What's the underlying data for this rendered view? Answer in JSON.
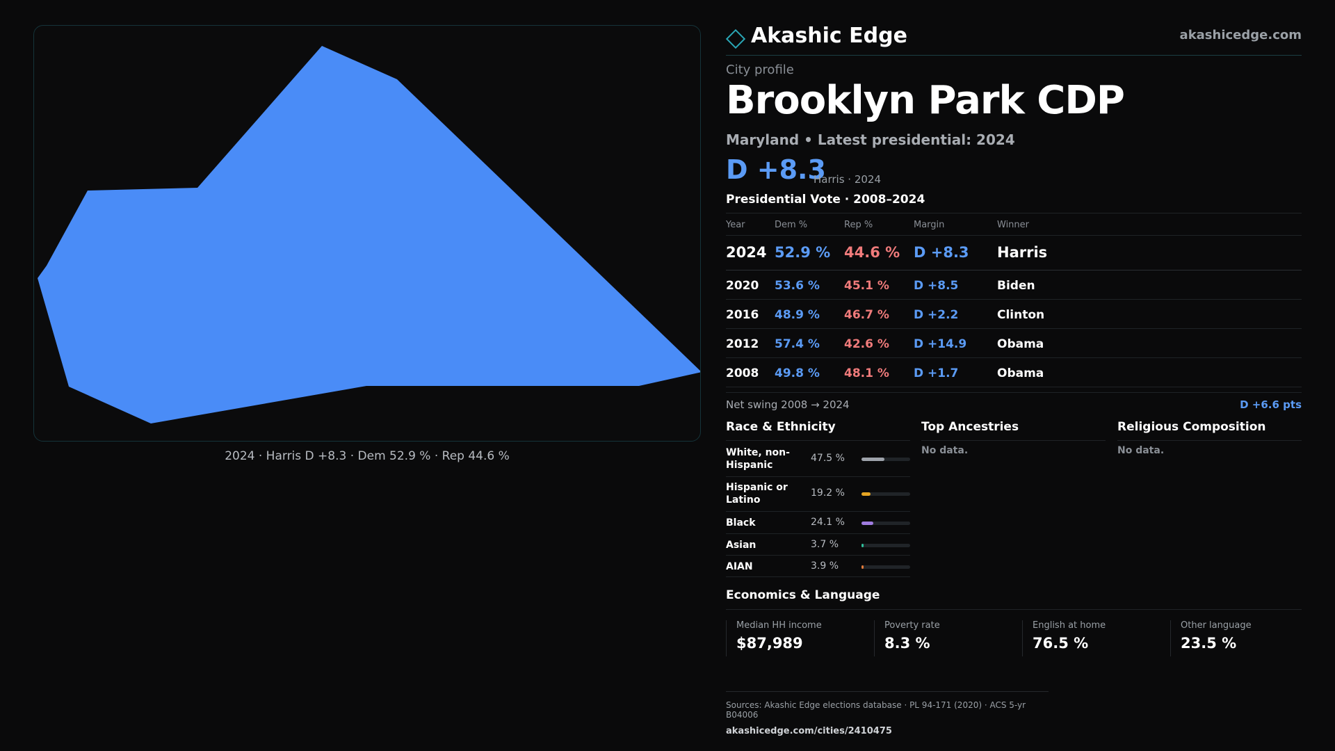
{
  "brand": {
    "name": "Akashic Edge",
    "url": "akashicedge.com",
    "accent_color": "#2aa7b6",
    "logo_icon": "diamond-icon"
  },
  "map": {
    "fill_color": "#4a8cf7",
    "caption": "2024 · Harris D +8.3 · Dem 52.9 % · Rep 44.6 %"
  },
  "profile": {
    "kicker": "City profile",
    "city": "Brooklyn Park CDP",
    "subline": "Maryland • Latest presidential: 2024",
    "margin": "D +8.3",
    "margin_note": "Harris · 2024"
  },
  "vote": {
    "title": "Presidential Vote · 2008–2024",
    "headers": {
      "year": "Year",
      "dem": "Dem %",
      "rep": "Rep %",
      "margin": "Margin",
      "winner": "Winner"
    },
    "rows": [
      {
        "year": "2024",
        "dem": "52.9 %",
        "rep": "44.6 %",
        "margin": "D +8.3",
        "winner": "Harris"
      },
      {
        "year": "2020",
        "dem": "53.6 %",
        "rep": "45.1 %",
        "margin": "D +8.5",
        "winner": "Biden"
      },
      {
        "year": "2016",
        "dem": "48.9 %",
        "rep": "46.7 %",
        "margin": "D +2.2",
        "winner": "Clinton"
      },
      {
        "year": "2012",
        "dem": "57.4 %",
        "rep": "42.6 %",
        "margin": "D +14.9",
        "winner": "Obama"
      },
      {
        "year": "2008",
        "dem": "49.8 %",
        "rep": "48.1 %",
        "margin": "D +1.7",
        "winner": "Obama"
      }
    ],
    "swing_label": "Net swing 2008 → 2024",
    "swing_value": "D +6.6 pts",
    "dem_color": "#5b9bf5",
    "rep_color": "#f07b7b"
  },
  "race": {
    "title": "Race & Ethnicity",
    "items": [
      {
        "label": "White, non-Hispanic",
        "value": "47.5 %",
        "pct": 47.5,
        "color": "#9ea3ab"
      },
      {
        "label": "Hispanic or Latino",
        "value": "19.2 %",
        "pct": 19.2,
        "color": "#e6a523"
      },
      {
        "label": "Black",
        "value": "24.1 %",
        "pct": 24.1,
        "color": "#a07ce0"
      },
      {
        "label": "Asian",
        "value": "3.7 %",
        "pct": 3.7,
        "color": "#2fbf9a"
      },
      {
        "label": "AIAN",
        "value": "3.9 %",
        "pct": 3.9,
        "color": "#e07a3a"
      }
    ]
  },
  "ancestries": {
    "title": "Top Ancestries",
    "empty": "No data."
  },
  "religion": {
    "title": "Religious Composition",
    "empty": "No data."
  },
  "economics": {
    "title": "Economics & Language",
    "cards": [
      {
        "label": "Median HH income",
        "value": "$87,989"
      },
      {
        "label": "Poverty rate",
        "value": "8.3 %"
      },
      {
        "label": "English at home",
        "value": "76.5 %"
      },
      {
        "label": "Other language",
        "value": "23.5 %"
      }
    ]
  },
  "sources": {
    "line1": "Sources: Akashic Edge elections database · PL 94-171 (2020) · ACS 5-yr B04006",
    "line2": "akashicedge.com/cities/2410475"
  }
}
